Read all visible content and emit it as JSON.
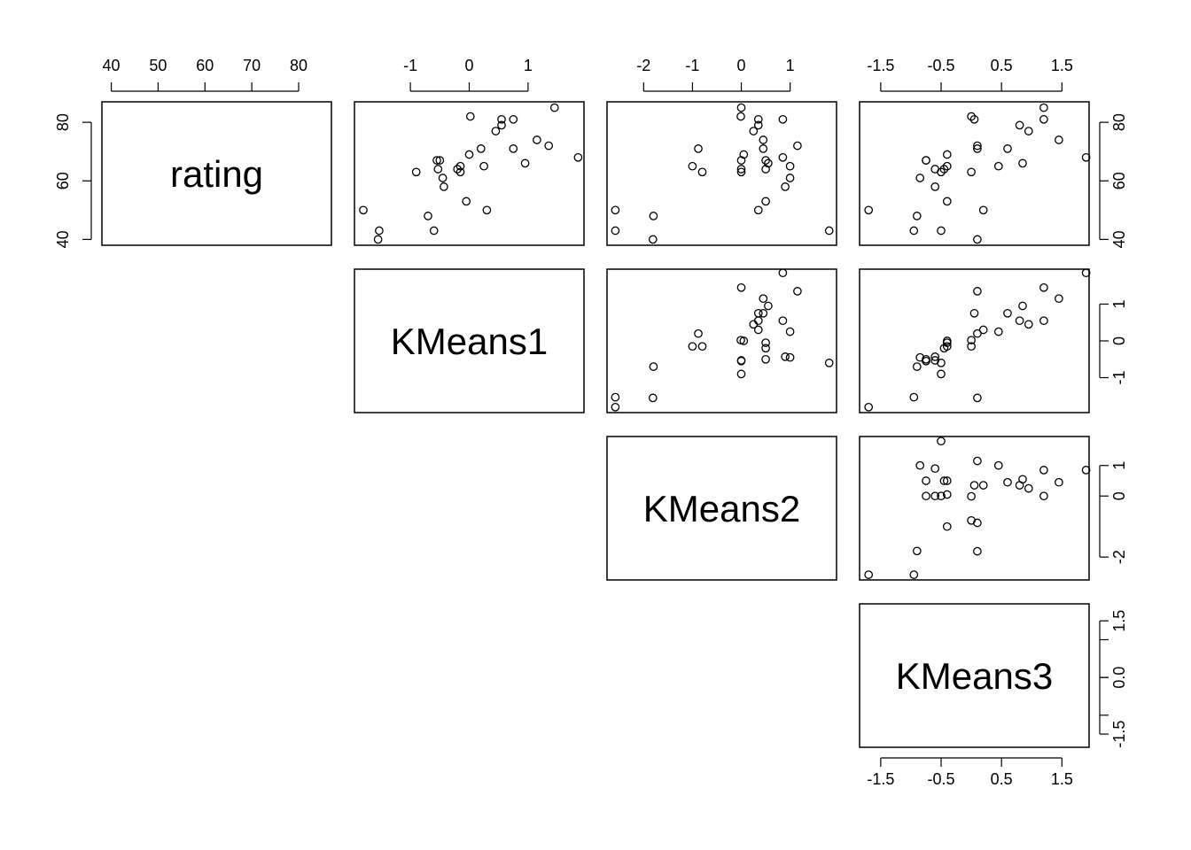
{
  "chart_data": {
    "type": "scatter",
    "variables": [
      {
        "name": "rating",
        "ticks": [
          40,
          50,
          60,
          70,
          80
        ],
        "side_ticks": [
          40,
          60,
          80
        ],
        "range": [
          38,
          87
        ]
      },
      {
        "name": "KMeans1",
        "ticks": [
          -1,
          0,
          1
        ],
        "side_ticks": [
          -1,
          0,
          1
        ],
        "range": [
          -1.95,
          1.95
        ]
      },
      {
        "name": "KMeans2",
        "ticks": [
          -2,
          -1,
          0,
          1
        ],
        "side_ticks": [
          -2,
          0,
          1
        ],
        "range": [
          -2.75,
          1.95
        ]
      },
      {
        "name": "KMeans3",
        "ticks": [
          -1.5,
          -0.5,
          0.5,
          1.5
        ],
        "side_ticks": [
          -1.5,
          0.0,
          1.5
        ],
        "minor_ticks": [
          -1.0,
          0.0,
          1.0
        ],
        "range": [
          -1.85,
          1.95
        ]
      }
    ],
    "tick_text": {
      "rating": [
        "40",
        "50",
        "60",
        "70",
        "80"
      ],
      "rating_side": [
        "40",
        "60",
        "80"
      ],
      "KMeans1": [
        "-1",
        "0",
        "1"
      ],
      "KMeans1_side": [
        "-1",
        "0",
        "1"
      ],
      "KMeans2": [
        "-2",
        "-1",
        "0",
        "1"
      ],
      "KMeans2_side": [
        "-2",
        "0",
        "1"
      ],
      "KMeans3": [
        "-1.5",
        "-0.5",
        "0.5",
        "1.5"
      ],
      "KMeans3_side": [
        "-1.5",
        "0.0",
        "1.5"
      ]
    },
    "observations": [
      [
        50,
        -1.8,
        -2.58,
        -1.7
      ],
      [
        43,
        -1.53,
        -2.58,
        -0.95
      ],
      [
        40,
        -1.55,
        -1.81,
        0.1
      ],
      [
        48,
        -0.7,
        -1.8,
        -0.9
      ],
      [
        43,
        -0.6,
        1.8,
        -0.5
      ],
      [
        67,
        -0.55,
        0.0,
        -0.75
      ],
      [
        67,
        -0.5,
        0.5,
        -0.75
      ],
      [
        64,
        -0.53,
        0.0,
        -0.6
      ],
      [
        61,
        -0.45,
        1.0,
        -0.85
      ],
      [
        58,
        -0.43,
        0.9,
        -0.6
      ],
      [
        63,
        -0.9,
        0.0,
        -0.5
      ],
      [
        64,
        -0.2,
        0.5,
        -0.45
      ],
      [
        65,
        -0.15,
        -1.0,
        -0.4
      ],
      [
        63,
        -0.15,
        -0.8,
        0.0
      ],
      [
        82,
        0.02,
        -0.01,
        0.0
      ],
      [
        69,
        0.0,
        0.05,
        -0.4
      ],
      [
        71,
        0.2,
        -0.88,
        0.1
      ],
      [
        65,
        0.25,
        1.0,
        0.45
      ],
      [
        53,
        -0.05,
        0.5,
        -0.4
      ],
      [
        50,
        0.3,
        0.35,
        0.2
      ],
      [
        77,
        0.45,
        0.25,
        0.95
      ],
      [
        79,
        0.55,
        0.35,
        0.8
      ],
      [
        81,
        0.55,
        0.85,
        1.2
      ],
      [
        81,
        0.75,
        0.35,
        0.05
      ],
      [
        71,
        0.75,
        0.45,
        0.6
      ],
      [
        66,
        0.95,
        0.55,
        0.85
      ],
      [
        74,
        1.15,
        0.45,
        1.45
      ],
      [
        72,
        1.35,
        1.15,
        0.1
      ],
      [
        85,
        1.45,
        0.0,
        1.2
      ],
      [
        68,
        1.85,
        0.85,
        1.9
      ]
    ]
  }
}
